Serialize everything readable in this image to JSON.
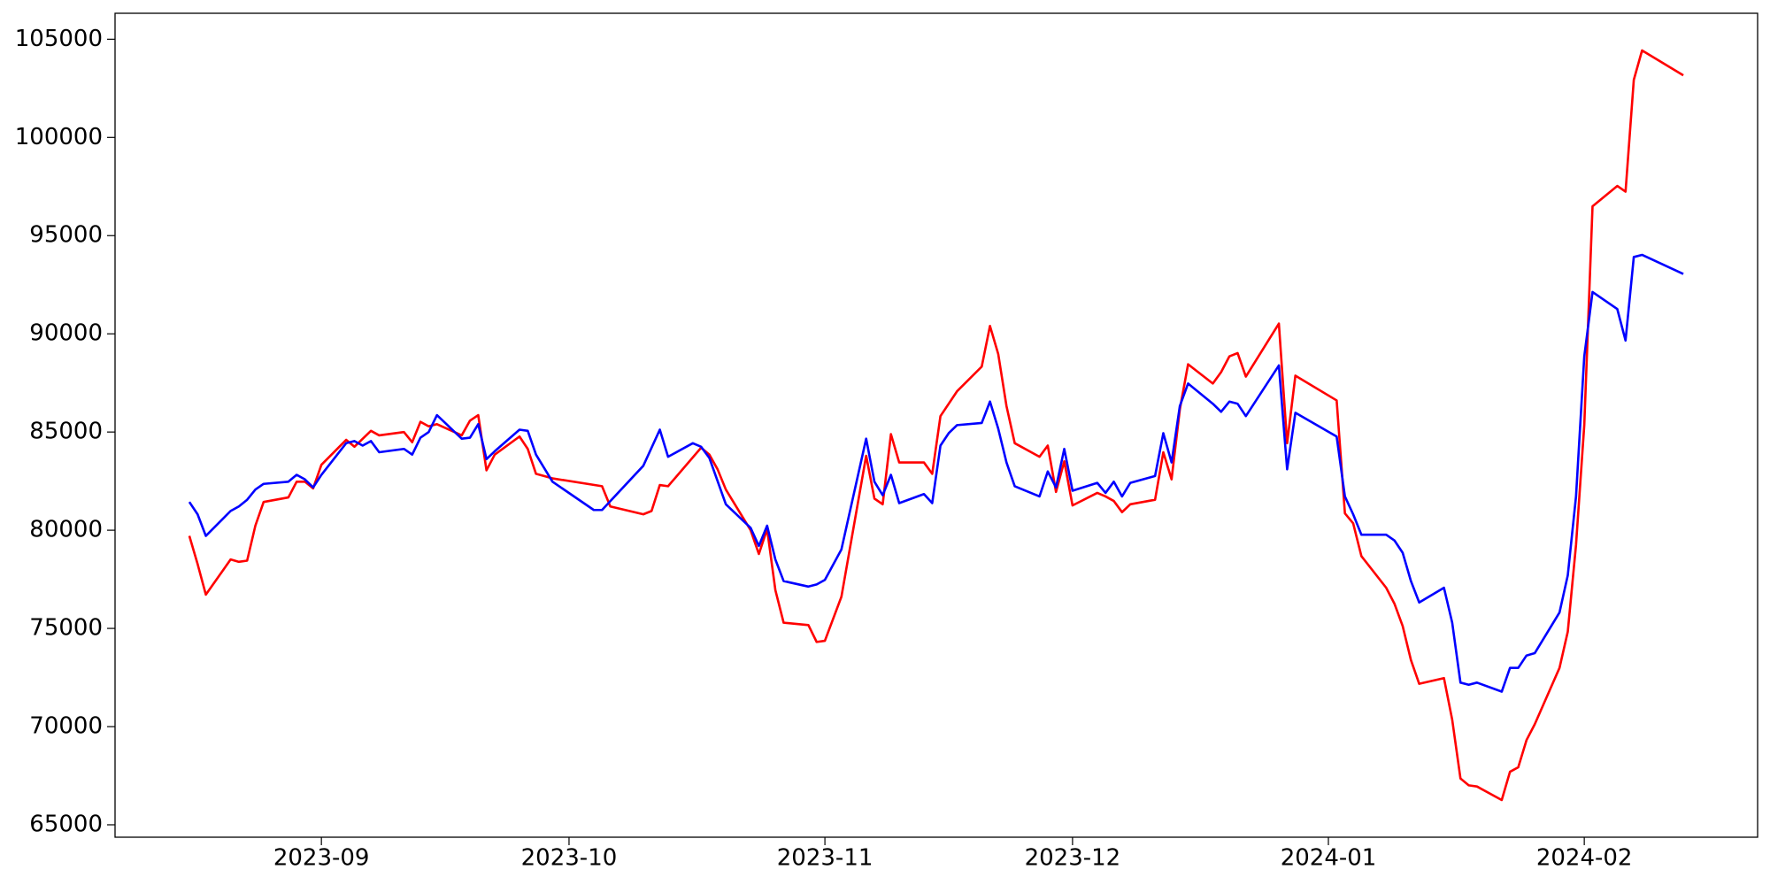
{
  "chart_data": {
    "type": "line",
    "xlim": [
      "2023-08-07",
      "2024-02-22"
    ],
    "ylim": [
      64368,
      106322
    ],
    "xticks": [
      {
        "value": "2023-09-01",
        "label": "2023-09"
      },
      {
        "value": "2023-10-01",
        "label": "2023-10"
      },
      {
        "value": "2023-11-01",
        "label": "2023-11"
      },
      {
        "value": "2023-12-01",
        "label": "2023-12"
      },
      {
        "value": "2024-01-01",
        "label": "2024-01"
      },
      {
        "value": "2024-02-01",
        "label": "2024-02"
      }
    ],
    "yticks": [
      65000,
      70000,
      75000,
      80000,
      85000,
      90000,
      95000,
      100000,
      105000
    ],
    "grid": false,
    "series": [
      {
        "color": "#ff0000",
        "x": [
          "2023-08-16",
          "2023-08-17",
          "2023-08-18",
          "2023-08-21",
          "2023-08-22",
          "2023-08-23",
          "2023-08-24",
          "2023-08-25",
          "2023-08-28",
          "2023-08-29",
          "2023-08-30",
          "2023-08-31",
          "2023-09-01",
          "2023-09-04",
          "2023-09-05",
          "2023-09-07",
          "2023-09-08",
          "2023-09-11",
          "2023-09-12",
          "2023-09-13",
          "2023-09-14",
          "2023-09-15",
          "2023-09-18",
          "2023-09-19",
          "2023-09-20",
          "2023-09-21",
          "2023-09-22",
          "2023-09-25",
          "2023-09-26",
          "2023-09-27",
          "2023-09-29",
          "2023-10-05",
          "2023-10-06",
          "2023-10-10",
          "2023-10-11",
          "2023-10-12",
          "2023-10-13",
          "2023-10-17",
          "2023-10-18",
          "2023-10-19",
          "2023-10-20",
          "2023-10-23",
          "2023-10-24",
          "2023-10-25",
          "2023-10-26",
          "2023-10-27",
          "2023-10-30",
          "2023-10-31",
          "2023-11-01",
          "2023-11-03",
          "2023-11-06",
          "2023-11-07",
          "2023-11-08",
          "2023-11-09",
          "2023-11-10",
          "2023-11-13",
          "2023-11-14",
          "2023-11-15",
          "2023-11-17",
          "2023-11-20",
          "2023-11-21",
          "2023-11-22",
          "2023-11-23",
          "2023-11-24",
          "2023-11-27",
          "2023-11-28",
          "2023-11-29",
          "2023-11-30",
          "2023-12-01",
          "2023-12-04",
          "2023-12-05",
          "2023-12-06",
          "2023-12-07",
          "2023-12-08",
          "2023-12-11",
          "2023-12-12",
          "2023-12-13",
          "2023-12-14",
          "2023-12-15",
          "2023-12-18",
          "2023-12-19",
          "2023-12-20",
          "2023-12-21",
          "2023-12-22",
          "2023-12-26",
          "2023-12-27",
          "2023-12-28",
          "2024-01-02",
          "2024-01-03",
          "2024-01-04",
          "2024-01-05",
          "2024-01-08",
          "2024-01-09",
          "2024-01-10",
          "2024-01-11",
          "2024-01-12",
          "2024-01-15",
          "2024-01-16",
          "2024-01-17",
          "2024-01-18",
          "2024-01-19",
          "2024-01-22",
          "2024-01-23",
          "2024-01-24",
          "2024-01-25",
          "2024-01-26",
          "2024-01-29",
          "2024-01-30",
          "2024-01-31",
          "2024-02-01",
          "2024-02-02",
          "2024-02-05",
          "2024-02-06",
          "2024-02-07",
          "2024-02-08",
          "2024-02-13"
        ],
        "values": [
          79710,
          78280,
          76720,
          78510,
          78390,
          78450,
          80230,
          81440,
          81670,
          82470,
          82470,
          82130,
          83330,
          84600,
          84250,
          85060,
          84830,
          85000,
          84480,
          85520,
          85290,
          85400,
          84830,
          85580,
          85860,
          83050,
          83850,
          84770,
          84140,
          82870,
          82640,
          82240,
          81210,
          80810,
          80980,
          82300,
          82240,
          84200,
          83850,
          83100,
          82070,
          80000,
          78790,
          80060,
          76950,
          75290,
          75170,
          74310,
          74370,
          76610,
          83790,
          81610,
          81320,
          84890,
          83450,
          83450,
          82870,
          85810,
          87070,
          88330,
          90400,
          88970,
          86320,
          84430,
          83740,
          84310,
          81950,
          83510,
          81260,
          81900,
          81720,
          81490,
          80920,
          81320,
          81550,
          83970,
          82590,
          86150,
          88450,
          87470,
          88050,
          88850,
          89020,
          87820,
          90520,
          84430,
          87870,
          86610,
          80860,
          80350,
          78680,
          77070,
          76260,
          75120,
          73390,
          72180,
          72470,
          70350,
          67360,
          67010,
          66950,
          66260,
          67700,
          67930,
          69310,
          70120,
          72990,
          74830,
          79250,
          85350,
          96490,
          97530,
          97240,
          102930,
          104430,
          103160
        ]
      },
      {
        "color": "#0000ff",
        "x": [
          "2023-08-16",
          "2023-08-17",
          "2023-08-18",
          "2023-08-21",
          "2023-08-22",
          "2023-08-23",
          "2023-08-24",
          "2023-08-25",
          "2023-08-28",
          "2023-08-29",
          "2023-08-30",
          "2023-08-31",
          "2023-09-01",
          "2023-09-04",
          "2023-09-05",
          "2023-09-06",
          "2023-09-07",
          "2023-09-08",
          "2023-09-11",
          "2023-09-12",
          "2023-09-13",
          "2023-09-14",
          "2023-09-15",
          "2023-09-18",
          "2023-09-19",
          "2023-09-20",
          "2023-09-21",
          "2023-09-22",
          "2023-09-25",
          "2023-09-26",
          "2023-09-27",
          "2023-09-29",
          "2023-10-04",
          "2023-10-05",
          "2023-10-10",
          "2023-10-12",
          "2023-10-13",
          "2023-10-16",
          "2023-10-17",
          "2023-10-18",
          "2023-10-20",
          "2023-10-23",
          "2023-10-24",
          "2023-10-25",
          "2023-10-26",
          "2023-10-27",
          "2023-10-30",
          "2023-10-31",
          "2023-11-01",
          "2023-11-03",
          "2023-11-06",
          "2023-11-07",
          "2023-11-08",
          "2023-11-09",
          "2023-11-10",
          "2023-11-13",
          "2023-11-14",
          "2023-11-15",
          "2023-11-16",
          "2023-11-17",
          "2023-11-20",
          "2023-11-21",
          "2023-11-22",
          "2023-11-23",
          "2023-11-24",
          "2023-11-27",
          "2023-11-28",
          "2023-11-29",
          "2023-11-30",
          "2023-12-01",
          "2023-12-04",
          "2023-12-05",
          "2023-12-06",
          "2023-12-07",
          "2023-12-08",
          "2023-12-11",
          "2023-12-12",
          "2023-12-13",
          "2023-12-14",
          "2023-12-15",
          "2023-12-18",
          "2023-12-19",
          "2023-12-20",
          "2023-12-21",
          "2023-12-22",
          "2023-12-26",
          "2023-12-27",
          "2023-12-28",
          "2024-01-02",
          "2024-01-03",
          "2024-01-04",
          "2024-01-05",
          "2024-01-08",
          "2024-01-09",
          "2024-01-10",
          "2024-01-11",
          "2024-01-12",
          "2024-01-15",
          "2024-01-16",
          "2024-01-17",
          "2024-01-18",
          "2024-01-19",
          "2024-01-22",
          "2024-01-23",
          "2024-01-24",
          "2024-01-25",
          "2024-01-26",
          "2024-01-29",
          "2024-01-30",
          "2024-01-31",
          "2024-02-01",
          "2024-02-02",
          "2024-02-05",
          "2024-02-06",
          "2024-02-07",
          "2024-02-08",
          "2024-02-13"
        ],
        "values": [
          81440,
          80810,
          79710,
          80980,
          81210,
          81550,
          82070,
          82360,
          82470,
          82820,
          82590,
          82180,
          82820,
          84430,
          84540,
          84310,
          84540,
          83970,
          84140,
          83850,
          84710,
          85000,
          85860,
          84660,
          84710,
          85400,
          83620,
          84020,
          85120,
          85060,
          83850,
          82470,
          81030,
          81030,
          83280,
          85120,
          83740,
          84430,
          84250,
          83680,
          81320,
          80120,
          79200,
          80230,
          78510,
          77410,
          77130,
          77240,
          77470,
          79020,
          84660,
          82470,
          81780,
          82820,
          81380,
          81840,
          81380,
          84310,
          84940,
          85350,
          85460,
          86550,
          85170,
          83450,
          82240,
          81720,
          82990,
          82180,
          84140,
          82010,
          82410,
          81900,
          82470,
          81720,
          82410,
          82760,
          84940,
          83450,
          86320,
          87470,
          86440,
          86030,
          86550,
          86440,
          85810,
          88390,
          83100,
          85980,
          84770,
          81720,
          80810,
          79770,
          79770,
          79480,
          78850,
          77410,
          76320,
          77070,
          75290,
          72240,
          72130,
          72240,
          71780,
          72990,
          72990,
          73620,
          73740,
          75810,
          77700,
          81720,
          88850,
          92130,
          91260,
          89660,
          93910,
          94020,
          93050
        ]
      }
    ]
  }
}
